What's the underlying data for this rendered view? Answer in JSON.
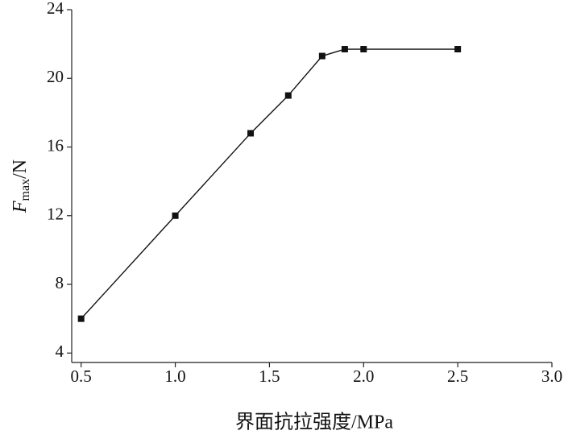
{
  "chart_data": {
    "type": "line",
    "x": [
      0.5,
      1.0,
      1.4,
      1.6,
      1.78,
      1.9,
      2.0,
      2.5
    ],
    "values": [
      6,
      12,
      16.8,
      19,
      21.3,
      21.7,
      21.7,
      21.7
    ],
    "color": "#111111",
    "marker": "square",
    "xlim": [
      0.45,
      3.0
    ],
    "xticks": [
      0.5,
      {
        "value": 1,
        "label": "1.0"
      },
      1.5,
      {
        "value": 2,
        "label": "2.0"
      },
      2.5,
      {
        "value": 3,
        "label": "3.0"
      }
    ],
    "ylim": [
      3.45,
      24
    ],
    "yticks": [
      4,
      8,
      12,
      16,
      20,
      24
    ],
    "x_label": "界面抗拉强度/MPa",
    "y_label": {
      "symbol": "F",
      "subscript": "max",
      "unit": "/N"
    },
    "grid": false
  }
}
